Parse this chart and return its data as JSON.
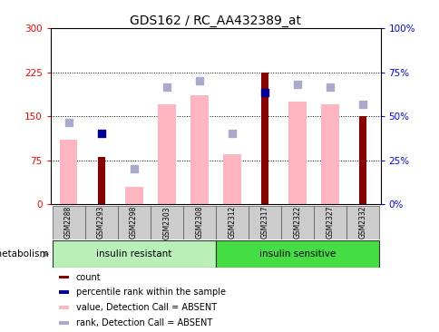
{
  "title": "GDS162 / RC_AA432389_at",
  "samples": [
    "GSM2288",
    "GSM2293",
    "GSM2298",
    "GSM2303",
    "GSM2308",
    "GSM2312",
    "GSM2317",
    "GSM2322",
    "GSM2327",
    "GSM2332"
  ],
  "group1_label": "insulin resistant",
  "group2_label": "insulin sensitive",
  "ylim_left": [
    0,
    300
  ],
  "ylim_right": [
    0,
    100
  ],
  "yticks_left": [
    0,
    75,
    150,
    225,
    300
  ],
  "yticks_right": [
    0,
    25,
    50,
    75,
    100
  ],
  "ytick_labels_left": [
    "0",
    "75",
    "150",
    "225",
    "300"
  ],
  "ytick_labels_right": [
    "0%",
    "25%",
    "50%",
    "75%",
    "100%"
  ],
  "value_absent": [
    110,
    null,
    30,
    170,
    185,
    85,
    null,
    175,
    170,
    null
  ],
  "rank_absent": [
    140,
    null,
    60,
    200,
    210,
    120,
    null,
    205,
    200,
    170
  ],
  "count_bars": [
    null,
    80,
    null,
    null,
    null,
    null,
    225,
    null,
    null,
    150
  ],
  "percentile_rank": [
    null,
    120,
    null,
    null,
    null,
    null,
    190,
    null,
    null,
    null
  ],
  "color_count": "#8B0000",
  "color_percentile": "#000099",
  "color_value_absent": "#FFB6C1",
  "color_rank_absent": "#AAAACC",
  "group1_bg": "#B8F0B8",
  "group2_bg": "#44DD44",
  "legend_items": [
    {
      "color": "#8B0000",
      "label": "count"
    },
    {
      "color": "#000099",
      "label": "percentile rank within the sample"
    },
    {
      "color": "#FFB6C1",
      "label": "value, Detection Call = ABSENT"
    },
    {
      "color": "#AAAACC",
      "label": "rank, Detection Call = ABSENT"
    }
  ]
}
